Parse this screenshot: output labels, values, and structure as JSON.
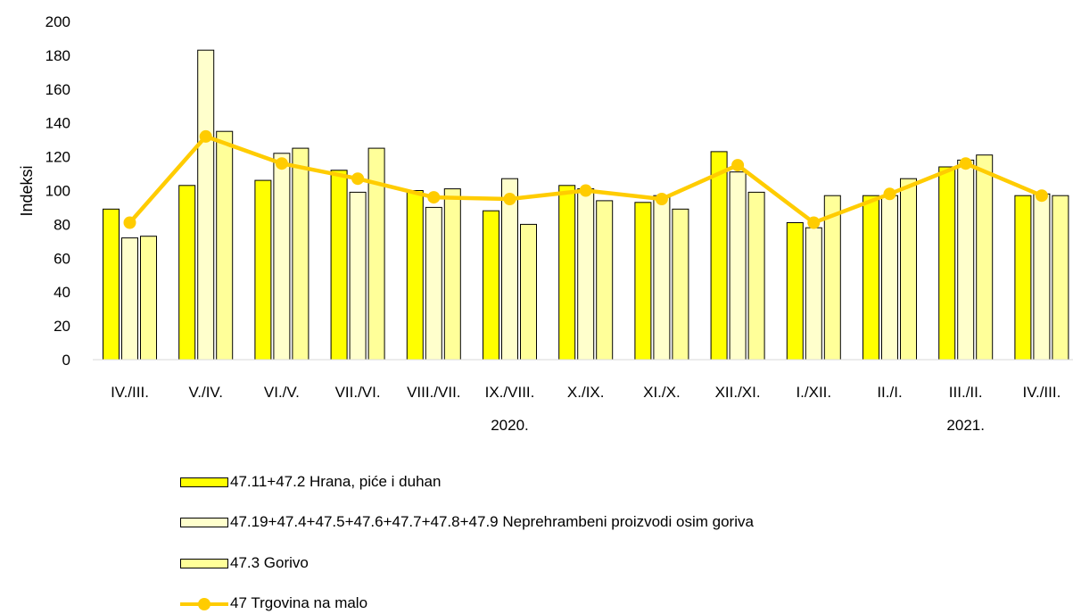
{
  "chart_data": {
    "type": "bar",
    "ylabel": "Indeksi",
    "ylim": [
      0,
      200
    ],
    "ytick_step": 20,
    "grid": false,
    "categories": [
      "IV./III.",
      "V./IV.",
      "VI./V.",
      "VII./VI.",
      "VIII./VII.",
      "IX./VIII.",
      "X./IX.",
      "XI./X.",
      "XII./XI.",
      "I./XII.",
      "II./I.",
      "III./II.",
      "IV./III."
    ],
    "year_labels": [
      {
        "label": "2020.",
        "category_index": 5
      },
      {
        "label": "2021.",
        "category_index": 11
      }
    ],
    "series": [
      {
        "name": "47.11+47.2 Hrana, piće i duhan",
        "kind": "bar",
        "color": "#FFFF00",
        "values": [
          89,
          103,
          106,
          112,
          100,
          88,
          103,
          93,
          123,
          81,
          97,
          114,
          97
        ]
      },
      {
        "name": "47.19+47.4+47.5+47.6+47.7+47.8+47.9 Neprehrambeni proizvodi osim goriva",
        "kind": "bar",
        "color": "#FFFFCC",
        "values": [
          72,
          183,
          122,
          99,
          90,
          107,
          101,
          97,
          111,
          78,
          97,
          118,
          98
        ]
      },
      {
        "name": "47.3 Gorivo",
        "kind": "bar",
        "color": "#FFFF99",
        "values": [
          73,
          135,
          125,
          125,
          101,
          80,
          94,
          89,
          99,
          97,
          107,
          121,
          97
        ]
      },
      {
        "name": "47 Trgovina na malo",
        "kind": "line",
        "color": "#FFCC00",
        "values": [
          81,
          132,
          116,
          107,
          96,
          95,
          100,
          95,
          115,
          81,
          98,
          116,
          97
        ]
      }
    ],
    "legend_position": "bottom"
  }
}
